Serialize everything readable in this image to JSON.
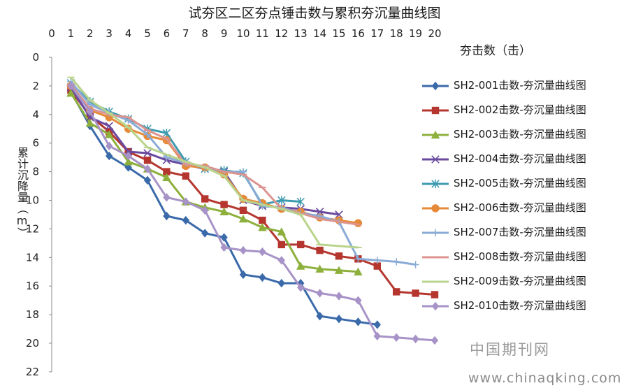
{
  "chart_data": {
    "type": "line",
    "title": "试夯区二区夯点锤击数与累积夯沉量曲线图",
    "xlabel": "夯击数（击）",
    "ylabel": "累计沉降量（m）",
    "x_axis_position": "top",
    "y_reversed": true,
    "xlim": [
      0,
      20
    ],
    "ylim": [
      0,
      22
    ],
    "x_ticks": [
      "0",
      "1",
      "2",
      "3",
      "4",
      "5",
      "6",
      "7",
      "8",
      "9",
      "10",
      "11",
      "12",
      "13",
      "14",
      "15",
      "16",
      "17",
      "18",
      "19",
      "20"
    ],
    "y_ticks": [
      "0",
      "2",
      "4",
      "6",
      "8",
      "10",
      "12",
      "14",
      "16",
      "18",
      "20",
      "22"
    ],
    "grid": false,
    "legend_position": "right",
    "series": [
      {
        "name": "SH2-001击数-夯沉量曲线图",
        "color": "#3a6aaa",
        "marker": "diamond",
        "x": [
          1,
          2,
          3,
          4,
          5,
          6,
          7,
          8,
          9,
          10,
          11,
          12,
          13,
          14,
          15,
          16,
          17
        ],
        "y": [
          2.4,
          4.8,
          6.9,
          7.7,
          8.6,
          11.1,
          11.4,
          12.3,
          12.6,
          15.2,
          15.4,
          15.8,
          15.8,
          18.1,
          18.3,
          18.5,
          18.7
        ]
      },
      {
        "name": "SH2-002击数-夯沉量曲线图",
        "color": "#b5362f",
        "marker": "square",
        "x": [
          1,
          2,
          3,
          4,
          5,
          6,
          7,
          8,
          9,
          10,
          11,
          12,
          13,
          14,
          15,
          16,
          17,
          18,
          19,
          20
        ],
        "y": [
          2.3,
          4.1,
          5.2,
          6.6,
          7.2,
          8.0,
          8.3,
          9.9,
          10.3,
          10.7,
          11.4,
          13.1,
          13.1,
          13.5,
          13.9,
          14.1,
          14.6,
          16.4,
          16.5,
          16.6
        ]
      },
      {
        "name": "SH2-003击数-夯沉量曲线图",
        "color": "#8db03c",
        "marker": "triangle",
        "x": [
          1,
          2,
          3,
          4,
          5,
          6,
          7,
          8,
          9,
          10,
          11,
          12,
          13,
          14,
          15,
          16
        ],
        "y": [
          2.5,
          4.6,
          5.4,
          7.3,
          7.8,
          8.4,
          10.1,
          10.5,
          10.8,
          11.3,
          11.9,
          12.2,
          14.6,
          14.8,
          14.9,
          15.0
        ]
      },
      {
        "name": "SH2-004击数-夯沉量曲线图",
        "color": "#6a4a9e",
        "marker": "x",
        "x": [
          1,
          2,
          3,
          4,
          5,
          6,
          7,
          8,
          9,
          10,
          11,
          12,
          13,
          14,
          15
        ],
        "y": [
          2.1,
          4.2,
          4.8,
          6.6,
          6.7,
          7.2,
          7.5,
          7.8,
          8.0,
          10.0,
          10.4,
          10.5,
          10.6,
          10.8,
          11.0
        ]
      },
      {
        "name": "SH2-005击数-夯沉量曲线图",
        "color": "#3d9bb0",
        "marker": "asterisk",
        "x": [
          1,
          2,
          3,
          4,
          5,
          6,
          7,
          8,
          9,
          10,
          11,
          12,
          13
        ],
        "y": [
          1.8,
          3.1,
          3.8,
          4.3,
          5.0,
          5.3,
          7.3,
          7.8,
          7.9,
          8.1,
          10.3,
          10.0,
          10.1
        ]
      },
      {
        "name": "SH2-006击数-夯沉量曲线图",
        "color": "#e68a38",
        "marker": "circle",
        "x": [
          1,
          2,
          3,
          4,
          5,
          6,
          7,
          8,
          9,
          10,
          11,
          12,
          13,
          14,
          15,
          16
        ],
        "y": [
          2.0,
          3.7,
          4.2,
          5.0,
          5.5,
          5.8,
          7.6,
          7.7,
          8.2,
          9.9,
          10.2,
          10.6,
          10.8,
          11.2,
          11.4,
          11.6
        ]
      },
      {
        "name": "SH2-007击数-夯沉量曲线图",
        "color": "#8aabd6",
        "marker": "plus",
        "x": [
          1,
          2,
          3,
          4,
          5,
          6,
          7,
          8,
          9,
          10,
          11,
          12,
          13,
          14,
          15,
          16,
          17,
          18,
          19
        ],
        "y": [
          1.7,
          3.3,
          3.9,
          4.4,
          5.4,
          7.0,
          7.4,
          7.7,
          8.0,
          8.0,
          10.4,
          10.5,
          10.9,
          11.1,
          11.5,
          14.1,
          14.2,
          14.3,
          14.5
        ]
      },
      {
        "name": "SH2-008击数-夯沉量曲线图",
        "color": "#dc9490",
        "marker": "dash",
        "x": [
          1,
          2,
          3,
          4,
          5,
          6,
          7,
          8,
          9,
          10,
          11,
          12,
          13,
          14,
          15,
          16
        ],
        "y": [
          1.9,
          3.6,
          4.0,
          4.2,
          5.1,
          5.7,
          7.5,
          7.6,
          8.0,
          8.2,
          9.1,
          10.6,
          10.9,
          11.3,
          11.5,
          11.7
        ]
      },
      {
        "name": "SH2-009击数-夯沉量曲线图",
        "color": "#b9d48c",
        "marker": "dash",
        "x": [
          1,
          2,
          3,
          4,
          5,
          6,
          7,
          8,
          9,
          10,
          11,
          12,
          13,
          14,
          15,
          16
        ],
        "y": [
          1.4,
          3.0,
          3.9,
          4.9,
          6.3,
          6.8,
          7.3,
          7.7,
          8.3,
          10.0,
          10.3,
          10.6,
          11.0,
          13.1,
          13.2,
          13.3
        ]
      },
      {
        "name": "SH2-010击数-夯沉量曲线图",
        "color": "#a793c7",
        "marker": "diamond",
        "x": [
          1,
          2,
          3,
          4,
          5,
          6,
          7,
          8,
          9,
          10,
          11,
          12,
          13,
          14,
          15,
          16,
          17,
          18,
          19,
          20
        ],
        "y": [
          2.0,
          3.8,
          6.2,
          6.9,
          7.8,
          9.8,
          10.1,
          10.7,
          13.3,
          13.5,
          13.6,
          14.2,
          16.1,
          16.5,
          16.7,
          17.0,
          19.5,
          19.6,
          19.7,
          19.8
        ]
      }
    ]
  },
  "watermark": {
    "cn": "中国期刊网",
    "url": "www.chinaqking.com"
  }
}
